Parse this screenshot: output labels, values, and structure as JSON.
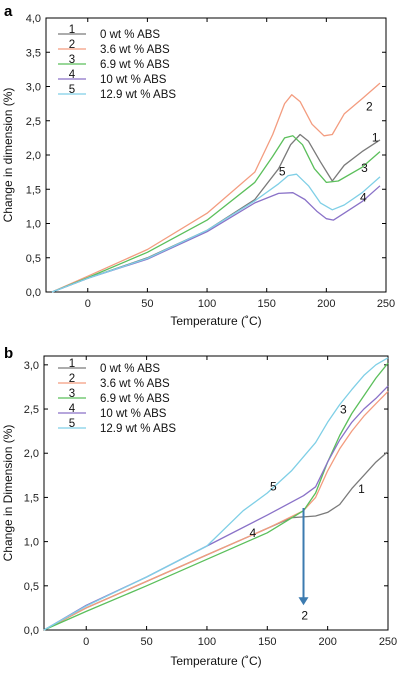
{
  "chart_data": [
    {
      "type": "line",
      "panel_label": "a",
      "xlabel": "Temperature (˚C)",
      "ylabel": "Change in dimension (%)",
      "xlim": [
        -35,
        250
      ],
      "ylim": [
        0,
        4.0
      ],
      "xticks": [
        {
          "v": 0,
          "t": "0"
        },
        {
          "v": 50,
          "t": "50"
        },
        {
          "v": 100,
          "t": "100"
        },
        {
          "v": 150,
          "t": "150"
        },
        {
          "v": 200,
          "t": "200"
        },
        {
          "v": 250,
          "t": "250"
        }
      ],
      "yticks": [
        {
          "v": 0,
          "t": "0,0"
        },
        {
          "v": 0.5,
          "t": "0,5"
        },
        {
          "v": 1.0,
          "t": "1,0"
        },
        {
          "v": 1.5,
          "t": "1,5"
        },
        {
          "v": 2.0,
          "t": "2,0"
        },
        {
          "v": 2.5,
          "t": "2,5"
        },
        {
          "v": 3.0,
          "t": "3,0"
        },
        {
          "v": 3.5,
          "t": "3,5"
        },
        {
          "v": 4.0,
          "t": "4,0"
        }
      ],
      "legend": [
        {
          "num": "1",
          "text": "0 wt % ABS"
        },
        {
          "num": "2",
          "text": "3.6 wt % ABS"
        },
        {
          "num": "3",
          "text": "6.9 wt % ABS"
        },
        {
          "num": "4",
          "text": "10 wt % ABS"
        },
        {
          "num": "5",
          "text": "12.9 wt % ABS"
        }
      ],
      "series": [
        {
          "num": "1",
          "color": "#7a7a7a",
          "x": [
            -30,
            0,
            50,
            100,
            140,
            160,
            170,
            178,
            185,
            195,
            205,
            215,
            230,
            245
          ],
          "y": [
            0.0,
            0.2,
            0.5,
            0.9,
            1.35,
            1.8,
            2.15,
            2.3,
            2.2,
            1.9,
            1.62,
            1.85,
            2.05,
            2.22
          ]
        },
        {
          "num": "2",
          "color": "#f39c7f",
          "x": [
            -30,
            0,
            50,
            100,
            140,
            155,
            165,
            171,
            178,
            188,
            198,
            205,
            215,
            230,
            245
          ],
          "y": [
            0.0,
            0.23,
            0.62,
            1.15,
            1.75,
            2.3,
            2.75,
            2.88,
            2.78,
            2.45,
            2.28,
            2.3,
            2.6,
            2.82,
            3.05
          ]
        },
        {
          "num": "3",
          "color": "#5bbf5b",
          "x": [
            -30,
            0,
            50,
            100,
            140,
            155,
            165,
            172,
            180,
            190,
            200,
            210,
            230,
            245
          ],
          "y": [
            0.0,
            0.21,
            0.58,
            1.05,
            1.6,
            1.98,
            2.25,
            2.28,
            2.15,
            1.8,
            1.6,
            1.62,
            1.82,
            2.05
          ]
        },
        {
          "num": "4",
          "color": "#8a72c8",
          "x": [
            -30,
            0,
            50,
            100,
            140,
            160,
            172,
            182,
            192,
            200,
            206,
            215,
            230,
            245
          ],
          "y": [
            0.0,
            0.2,
            0.48,
            0.88,
            1.3,
            1.44,
            1.45,
            1.35,
            1.18,
            1.07,
            1.05,
            1.15,
            1.32,
            1.55
          ]
        },
        {
          "num": "5",
          "color": "#7fcfe6",
          "x": [
            -30,
            0,
            50,
            100,
            140,
            160,
            168,
            175,
            185,
            195,
            205,
            215,
            230,
            245
          ],
          "y": [
            0.0,
            0.2,
            0.49,
            0.9,
            1.33,
            1.58,
            1.7,
            1.72,
            1.55,
            1.3,
            1.2,
            1.27,
            1.45,
            1.68
          ]
        }
      ],
      "annotations": [
        {
          "text": "1",
          "x": 241,
          "y": 2.2
        },
        {
          "text": "2",
          "x": 236,
          "y": 2.65
        },
        {
          "text": "3",
          "x": 232,
          "y": 1.75
        },
        {
          "text": "4",
          "x": 231,
          "y": 1.32
        },
        {
          "text": "5",
          "x": 163,
          "y": 1.7
        }
      ]
    },
    {
      "type": "line",
      "panel_label": "b",
      "xlabel": "Temperature (˚C)",
      "ylabel": "Change in Dimension (%)",
      "xlim": [
        -35,
        250
      ],
      "ylim": [
        0,
        3.1
      ],
      "xticks": [
        {
          "v": 0,
          "t": "0"
        },
        {
          "v": 50,
          "t": "50"
        },
        {
          "v": 100,
          "t": "100"
        },
        {
          "v": 150,
          "t": "150"
        },
        {
          "v": 200,
          "t": "200"
        },
        {
          "v": 250,
          "t": "250"
        }
      ],
      "yticks": [
        {
          "v": 0,
          "t": "0,0"
        },
        {
          "v": 0.5,
          "t": "0,5"
        },
        {
          "v": 1.0,
          "t": "1,0"
        },
        {
          "v": 1.5,
          "t": "1,5"
        },
        {
          "v": 2.0,
          "t": "2,0"
        },
        {
          "v": 2.5,
          "t": "2,5"
        },
        {
          "v": 3.0,
          "t": "3,0"
        }
      ],
      "legend": [
        {
          "num": "1",
          "text": "0 wt % ABS"
        },
        {
          "num": "2",
          "text": "3.6 wt % ABS"
        },
        {
          "num": "3",
          "text": "6.9 wt % ABS"
        },
        {
          "num": "4",
          "text": "10 wt % ABS"
        },
        {
          "num": "5",
          "text": "12.9 wt % ABS"
        }
      ],
      "series": [
        {
          "num": "1",
          "color": "#7a7a7a",
          "x": [
            -35,
            0,
            50,
            100,
            150,
            170,
            180,
            190,
            200,
            210,
            220,
            230,
            240,
            250
          ],
          "y": [
            0.0,
            0.25,
            0.55,
            0.85,
            1.15,
            1.27,
            1.28,
            1.29,
            1.33,
            1.42,
            1.6,
            1.75,
            1.9,
            2.02
          ]
        },
        {
          "num": "2",
          "color": "#f39c7f",
          "x": [
            -35,
            0,
            50,
            100,
            150,
            180,
            190,
            200,
            210,
            220,
            230,
            240,
            250
          ],
          "y": [
            0.0,
            0.25,
            0.55,
            0.85,
            1.15,
            1.35,
            1.5,
            1.8,
            2.05,
            2.25,
            2.42,
            2.56,
            2.7
          ]
        },
        {
          "num": "3",
          "color": "#5bbf5b",
          "x": [
            -35,
            0,
            50,
            100,
            150,
            180,
            190,
            200,
            210,
            220,
            230,
            240,
            250
          ],
          "y": [
            0.0,
            0.21,
            0.5,
            0.8,
            1.1,
            1.35,
            1.55,
            1.9,
            2.2,
            2.45,
            2.65,
            2.85,
            3.02
          ]
        },
        {
          "num": "4",
          "color": "#8a72c8",
          "x": [
            -35,
            0,
            50,
            100,
            150,
            180,
            190,
            200,
            210,
            220,
            230,
            240,
            250
          ],
          "y": [
            0.0,
            0.28,
            0.6,
            0.95,
            1.3,
            1.52,
            1.62,
            1.9,
            2.15,
            2.35,
            2.5,
            2.62,
            2.76
          ]
        },
        {
          "num": "5",
          "color": "#7fcfe6",
          "x": [
            -35,
            0,
            50,
            100,
            130,
            150,
            170,
            190,
            200,
            210,
            220,
            230,
            240,
            250
          ],
          "y": [
            0.0,
            0.27,
            0.6,
            0.95,
            1.35,
            1.55,
            1.8,
            2.12,
            2.35,
            2.55,
            2.72,
            2.88,
            3.0,
            3.08
          ]
        }
      ],
      "annotations": [
        {
          "text": "1",
          "x": 228,
          "y": 1.55
        },
        {
          "text": "3",
          "x": 213,
          "y": 2.45
        },
        {
          "text": "4",
          "x": 138,
          "y": 1.05
        },
        {
          "text": "5",
          "x": 155,
          "y": 1.58
        },
        {
          "text": "2",
          "x": 181,
          "y": 0.12
        }
      ],
      "arrow": {
        "x": 180,
        "y_from": 1.38,
        "y_to": 0.28,
        "color": "#3c7bb0"
      }
    }
  ]
}
